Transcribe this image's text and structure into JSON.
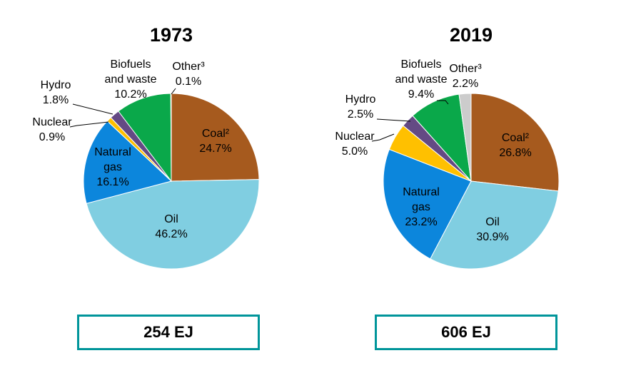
{
  "chart_data": [
    {
      "type": "pie",
      "title": "1973",
      "total_label": "254 EJ",
      "start": "top",
      "direction": "clockwise",
      "slices": [
        {
          "name": "Coal²",
          "value": 24.7,
          "label": "24.7%",
          "color": "#A65A1E"
        },
        {
          "name": "Oil",
          "value": 46.2,
          "label": "46.2%",
          "color": "#80CEE1"
        },
        {
          "name": "Natural gas",
          "value": 16.1,
          "label": "16.1%",
          "color": "#0C86DC"
        },
        {
          "name": "Nuclear",
          "value": 0.9,
          "label": "0.9%",
          "color": "#FFC000"
        },
        {
          "name": "Hydro",
          "value": 1.8,
          "label": "1.8%",
          "color": "#644A84"
        },
        {
          "name": "Biofuels and waste",
          "value": 10.2,
          "label": "10.2%",
          "color": "#0AA84A"
        },
        {
          "name": "Other³",
          "value": 0.1,
          "label": "0.1%",
          "color": "#CCCCCC"
        }
      ]
    },
    {
      "type": "pie",
      "title": "2019",
      "total_label": "606 EJ",
      "start": "top",
      "direction": "clockwise",
      "slices": [
        {
          "name": "Coal²",
          "value": 26.8,
          "label": "26.8%",
          "color": "#A65A1E"
        },
        {
          "name": "Oil",
          "value": 30.9,
          "label": "30.9%",
          "color": "#80CEE1"
        },
        {
          "name": "Natural gas",
          "value": 23.2,
          "label": "23.2%",
          "color": "#0C86DC"
        },
        {
          "name": "Nuclear",
          "value": 5.0,
          "label": "5.0%",
          "color": "#FFC000"
        },
        {
          "name": "Hydro",
          "value": 2.5,
          "label": "2.5%",
          "color": "#644A84"
        },
        {
          "name": "Biofuels and waste",
          "value": 9.4,
          "label": "9.4%",
          "color": "#0AA84A"
        },
        {
          "name": "Other³",
          "value": 2.2,
          "label": "2.2%",
          "color": "#CCCCCC"
        }
      ]
    }
  ]
}
